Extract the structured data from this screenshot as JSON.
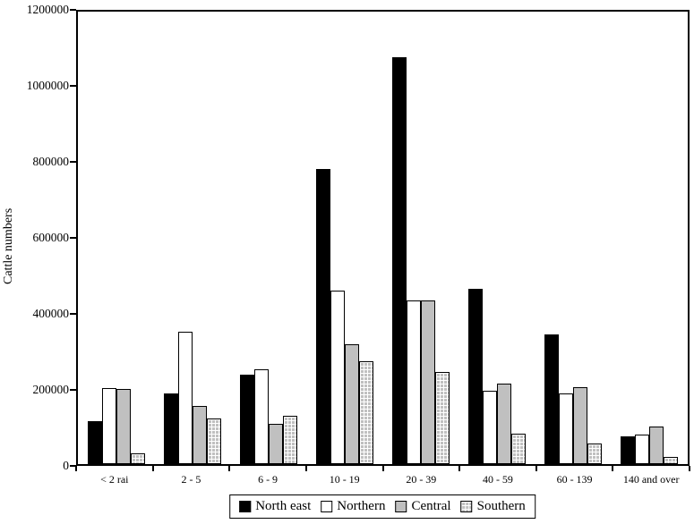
{
  "chart_data": {
    "type": "bar",
    "title": "",
    "xlabel": "",
    "ylabel": "Cattle numbers",
    "ylim": [
      0,
      1200000
    ],
    "yticks": [
      1200000,
      1000000,
      800000,
      600000,
      400000,
      200000,
      0
    ],
    "grid": false,
    "legend_position": "bottom",
    "categories": [
      "< 2 rai",
      "2 - 5",
      "6 - 9",
      "10 - 19",
      "20 - 39",
      "40 - 59",
      "60 - 139",
      "140 and over"
    ],
    "series": [
      {
        "name": "North east",
        "color": "#000000",
        "pattern": "solid",
        "values": [
          113000,
          188000,
          236000,
          783000,
          1078000,
          465000,
          343000,
          74000
        ]
      },
      {
        "name": "Northern",
        "color": "#ffffff",
        "pattern": "solid",
        "values": [
          202000,
          350000,
          252000,
          461000,
          435000,
          195000,
          187000,
          79000
        ]
      },
      {
        "name": "Central",
        "color": "#c0c0c0",
        "pattern": "solid",
        "values": [
          200000,
          155000,
          107000,
          318000,
          433000,
          214000,
          204000,
          99000
        ]
      },
      {
        "name": "Southern",
        "color": "#c0c0c0",
        "pattern": "checker",
        "values": [
          28000,
          122000,
          128000,
          273000,
          245000,
          81000,
          55000,
          18000
        ]
      }
    ]
  }
}
